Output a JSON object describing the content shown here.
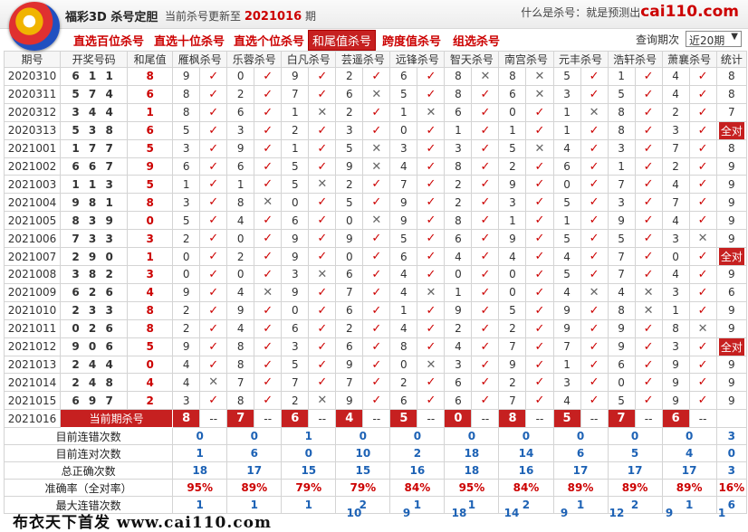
{
  "header": {
    "app_title": "福彩3D 杀号定胆",
    "update_prefix": "当前杀号更新至",
    "update_period": "2021016",
    "update_suffix": "期",
    "right_prefix": "什么是杀号：就是预测出",
    "right_brand": "cai110.com"
  },
  "nav": {
    "items": [
      "直选百位杀号",
      "直选十位杀号",
      "直选个位杀号",
      "和尾值杀号",
      "跨度值杀号",
      "组选杀号"
    ],
    "selected": 3,
    "query_label": "查询期次",
    "query_value": "近20期"
  },
  "columns": [
    "期号",
    "开奖号码",
    "和尾值",
    "雁枫杀号",
    "乐蓉杀号",
    "白凡杀号",
    "芸遥杀号",
    "远锋杀号",
    "智天杀号",
    "南宫杀号",
    "元丰杀号",
    "浩轩杀号",
    "萧襄杀号",
    "统计"
  ],
  "rows": [
    {
      "p": "2020310",
      "n": "611",
      "h": "8",
      "k": [
        [
          "9",
          "o"
        ],
        [
          "0",
          "o"
        ],
        [
          "9",
          "o"
        ],
        [
          "2",
          "o"
        ],
        [
          "6",
          "o"
        ],
        [
          "8",
          "x"
        ],
        [
          "8",
          "x"
        ],
        [
          "5",
          "o"
        ],
        [
          "1",
          "o"
        ],
        [
          "4",
          "o"
        ]
      ],
      "s": "8"
    },
    {
      "p": "2020311",
      "n": "574",
      "h": "6",
      "k": [
        [
          "8",
          "o"
        ],
        [
          "2",
          "o"
        ],
        [
          "7",
          "o"
        ],
        [
          "6",
          "x"
        ],
        [
          "5",
          "o"
        ],
        [
          "8",
          "o"
        ],
        [
          "6",
          "x"
        ],
        [
          "3",
          "o"
        ],
        [
          "5",
          "o"
        ],
        [
          "4",
          "o"
        ]
      ],
      "s": "8"
    },
    {
      "p": "2020312",
      "n": "344",
      "h": "1",
      "k": [
        [
          "8",
          "o"
        ],
        [
          "6",
          "o"
        ],
        [
          "1",
          "x"
        ],
        [
          "2",
          "o"
        ],
        [
          "1",
          "x"
        ],
        [
          "6",
          "o"
        ],
        [
          "0",
          "o"
        ],
        [
          "1",
          "x"
        ],
        [
          "8",
          "o"
        ],
        [
          "2",
          "o"
        ]
      ],
      "s": "7"
    },
    {
      "p": "2020313",
      "n": "538",
      "h": "6",
      "k": [
        [
          "5",
          "o"
        ],
        [
          "3",
          "o"
        ],
        [
          "2",
          "o"
        ],
        [
          "3",
          "o"
        ],
        [
          "0",
          "o"
        ],
        [
          "1",
          "o"
        ],
        [
          "1",
          "o"
        ],
        [
          "1",
          "o"
        ],
        [
          "8",
          "o"
        ],
        [
          "3",
          "o"
        ]
      ],
      "s": "全对"
    },
    {
      "p": "2021001",
      "n": "177",
      "h": "5",
      "k": [
        [
          "3",
          "o"
        ],
        [
          "9",
          "o"
        ],
        [
          "1",
          "o"
        ],
        [
          "5",
          "x"
        ],
        [
          "3",
          "o"
        ],
        [
          "3",
          "o"
        ],
        [
          "5",
          "x"
        ],
        [
          "4",
          "o"
        ],
        [
          "3",
          "o"
        ],
        [
          "7",
          "o"
        ]
      ],
      "s": "8"
    },
    {
      "p": "2021002",
      "n": "667",
      "h": "9",
      "k": [
        [
          "6",
          "o"
        ],
        [
          "6",
          "o"
        ],
        [
          "5",
          "o"
        ],
        [
          "9",
          "x"
        ],
        [
          "4",
          "o"
        ],
        [
          "8",
          "o"
        ],
        [
          "2",
          "o"
        ],
        [
          "6",
          "o"
        ],
        [
          "1",
          "o"
        ],
        [
          "2",
          "o"
        ]
      ],
      "s": "9"
    },
    {
      "p": "2021003",
      "n": "113",
      "h": "5",
      "k": [
        [
          "1",
          "o"
        ],
        [
          "1",
          "o"
        ],
        [
          "5",
          "x"
        ],
        [
          "2",
          "o"
        ],
        [
          "7",
          "o"
        ],
        [
          "2",
          "o"
        ],
        [
          "9",
          "o"
        ],
        [
          "0",
          "o"
        ],
        [
          "7",
          "o"
        ],
        [
          "4",
          "o"
        ]
      ],
      "s": "9"
    },
    {
      "p": "2021004",
      "n": "981",
      "h": "8",
      "k": [
        [
          "3",
          "o"
        ],
        [
          "8",
          "x"
        ],
        [
          "0",
          "o"
        ],
        [
          "5",
          "o"
        ],
        [
          "9",
          "o"
        ],
        [
          "2",
          "o"
        ],
        [
          "3",
          "o"
        ],
        [
          "5",
          "o"
        ],
        [
          "3",
          "o"
        ],
        [
          "7",
          "o"
        ]
      ],
      "s": "9"
    },
    {
      "p": "2021005",
      "n": "839",
      "h": "0",
      "k": [
        [
          "5",
          "o"
        ],
        [
          "4",
          "o"
        ],
        [
          "6",
          "o"
        ],
        [
          "0",
          "x"
        ],
        [
          "9",
          "o"
        ],
        [
          "8",
          "o"
        ],
        [
          "1",
          "o"
        ],
        [
          "1",
          "o"
        ],
        [
          "9",
          "o"
        ],
        [
          "4",
          "o"
        ]
      ],
      "s": "9"
    },
    {
      "p": "2021006",
      "n": "733",
      "h": "3",
      "k": [
        [
          "2",
          "o"
        ],
        [
          "0",
          "o"
        ],
        [
          "9",
          "o"
        ],
        [
          "9",
          "o"
        ],
        [
          "5",
          "o"
        ],
        [
          "6",
          "o"
        ],
        [
          "9",
          "o"
        ],
        [
          "5",
          "o"
        ],
        [
          "5",
          "o"
        ],
        [
          "3",
          "x"
        ]
      ],
      "s": "9"
    },
    {
      "p": "2021007",
      "n": "290",
      "h": "1",
      "k": [
        [
          "0",
          "o"
        ],
        [
          "2",
          "o"
        ],
        [
          "9",
          "o"
        ],
        [
          "0",
          "o"
        ],
        [
          "6",
          "o"
        ],
        [
          "4",
          "o"
        ],
        [
          "4",
          "o"
        ],
        [
          "4",
          "o"
        ],
        [
          "7",
          "o"
        ],
        [
          "0",
          "o"
        ]
      ],
      "s": "全对"
    },
    {
      "p": "2021008",
      "n": "382",
      "h": "3",
      "k": [
        [
          "0",
          "o"
        ],
        [
          "0",
          "o"
        ],
        [
          "3",
          "x"
        ],
        [
          "6",
          "o"
        ],
        [
          "4",
          "o"
        ],
        [
          "0",
          "o"
        ],
        [
          "0",
          "o"
        ],
        [
          "5",
          "o"
        ],
        [
          "7",
          "o"
        ],
        [
          "4",
          "o"
        ]
      ],
      "s": "9"
    },
    {
      "p": "2021009",
      "n": "626",
      "h": "4",
      "k": [
        [
          "9",
          "o"
        ],
        [
          "4",
          "x"
        ],
        [
          "9",
          "o"
        ],
        [
          "7",
          "o"
        ],
        [
          "4",
          "x"
        ],
        [
          "1",
          "o"
        ],
        [
          "0",
          "o"
        ],
        [
          "4",
          "x"
        ],
        [
          "4",
          "x"
        ],
        [
          "3",
          "o"
        ]
      ],
      "s": "6"
    },
    {
      "p": "2021010",
      "n": "233",
      "h": "8",
      "k": [
        [
          "2",
          "o"
        ],
        [
          "9",
          "o"
        ],
        [
          "0",
          "o"
        ],
        [
          "6",
          "o"
        ],
        [
          "1",
          "o"
        ],
        [
          "9",
          "o"
        ],
        [
          "5",
          "o"
        ],
        [
          "9",
          "o"
        ],
        [
          "8",
          "x"
        ],
        [
          "1",
          "o"
        ]
      ],
      "s": "9"
    },
    {
      "p": "2021011",
      "n": "026",
      "h": "8",
      "k": [
        [
          "2",
          "o"
        ],
        [
          "4",
          "o"
        ],
        [
          "6",
          "o"
        ],
        [
          "2",
          "o"
        ],
        [
          "4",
          "o"
        ],
        [
          "2",
          "o"
        ],
        [
          "2",
          "o"
        ],
        [
          "9",
          "o"
        ],
        [
          "9",
          "o"
        ],
        [
          "8",
          "x"
        ]
      ],
      "s": "9"
    },
    {
      "p": "2021012",
      "n": "906",
      "h": "5",
      "k": [
        [
          "9",
          "o"
        ],
        [
          "8",
          "o"
        ],
        [
          "3",
          "o"
        ],
        [
          "6",
          "o"
        ],
        [
          "8",
          "o"
        ],
        [
          "4",
          "o"
        ],
        [
          "7",
          "o"
        ],
        [
          "7",
          "o"
        ],
        [
          "9",
          "o"
        ],
        [
          "3",
          "o"
        ]
      ],
      "s": "全对"
    },
    {
      "p": "2021013",
      "n": "244",
      "h": "0",
      "k": [
        [
          "4",
          "o"
        ],
        [
          "8",
          "o"
        ],
        [
          "5",
          "o"
        ],
        [
          "9",
          "o"
        ],
        [
          "0",
          "x"
        ],
        [
          "3",
          "o"
        ],
        [
          "9",
          "o"
        ],
        [
          "1",
          "o"
        ],
        [
          "6",
          "o"
        ],
        [
          "9",
          "o"
        ]
      ],
      "s": "9"
    },
    {
      "p": "2021014",
      "n": "248",
      "h": "4",
      "k": [
        [
          "4",
          "x"
        ],
        [
          "7",
          "o"
        ],
        [
          "7",
          "o"
        ],
        [
          "7",
          "o"
        ],
        [
          "2",
          "o"
        ],
        [
          "6",
          "o"
        ],
        [
          "2",
          "o"
        ],
        [
          "3",
          "o"
        ],
        [
          "0",
          "o"
        ],
        [
          "9",
          "o"
        ]
      ],
      "s": "9"
    },
    {
      "p": "2021015",
      "n": "697",
      "h": "2",
      "k": [
        [
          "3",
          "o"
        ],
        [
          "8",
          "o"
        ],
        [
          "2",
          "x"
        ],
        [
          "9",
          "o"
        ],
        [
          "6",
          "o"
        ],
        [
          "6",
          "o"
        ],
        [
          "7",
          "o"
        ],
        [
          "4",
          "o"
        ],
        [
          "5",
          "o"
        ],
        [
          "9",
          "o"
        ]
      ],
      "s": "9"
    }
  ],
  "current": {
    "p": "2021016",
    "label": "当前期杀号",
    "k": [
      "8",
      "7",
      "6",
      "4",
      "5",
      "0",
      "8",
      "5",
      "7",
      "6"
    ],
    "dash": "--"
  },
  "stats": [
    {
      "label": "目前连错次数",
      "v": [
        "0",
        "0",
        "1",
        "0",
        "0",
        "0",
        "0",
        "0",
        "0",
        "0"
      ],
      "s": "3"
    },
    {
      "label": "目前连对次数",
      "v": [
        "1",
        "6",
        "0",
        "10",
        "2",
        "18",
        "14",
        "6",
        "5",
        "4"
      ],
      "s": "0"
    },
    {
      "label": "总正确次数",
      "v": [
        "18",
        "17",
        "15",
        "15",
        "16",
        "18",
        "16",
        "17",
        "17",
        "17"
      ],
      "s": "3"
    },
    {
      "label": "准确率（全对率）",
      "v": [
        "95%",
        "89%",
        "79%",
        "79%",
        "84%",
        "95%",
        "84%",
        "89%",
        "89%",
        "89%"
      ],
      "s": "16%"
    },
    {
      "label": "最大连错次数",
      "v": [
        "1",
        "1",
        "1",
        "2",
        "1",
        "1",
        "2",
        "1",
        "2",
        "1"
      ],
      "s": "6"
    }
  ],
  "last_row": [
    "10",
    "9",
    "18",
    "14",
    "9",
    "12",
    "9",
    "1"
  ],
  "footer": "布衣天下首发 www.cai110.com"
}
